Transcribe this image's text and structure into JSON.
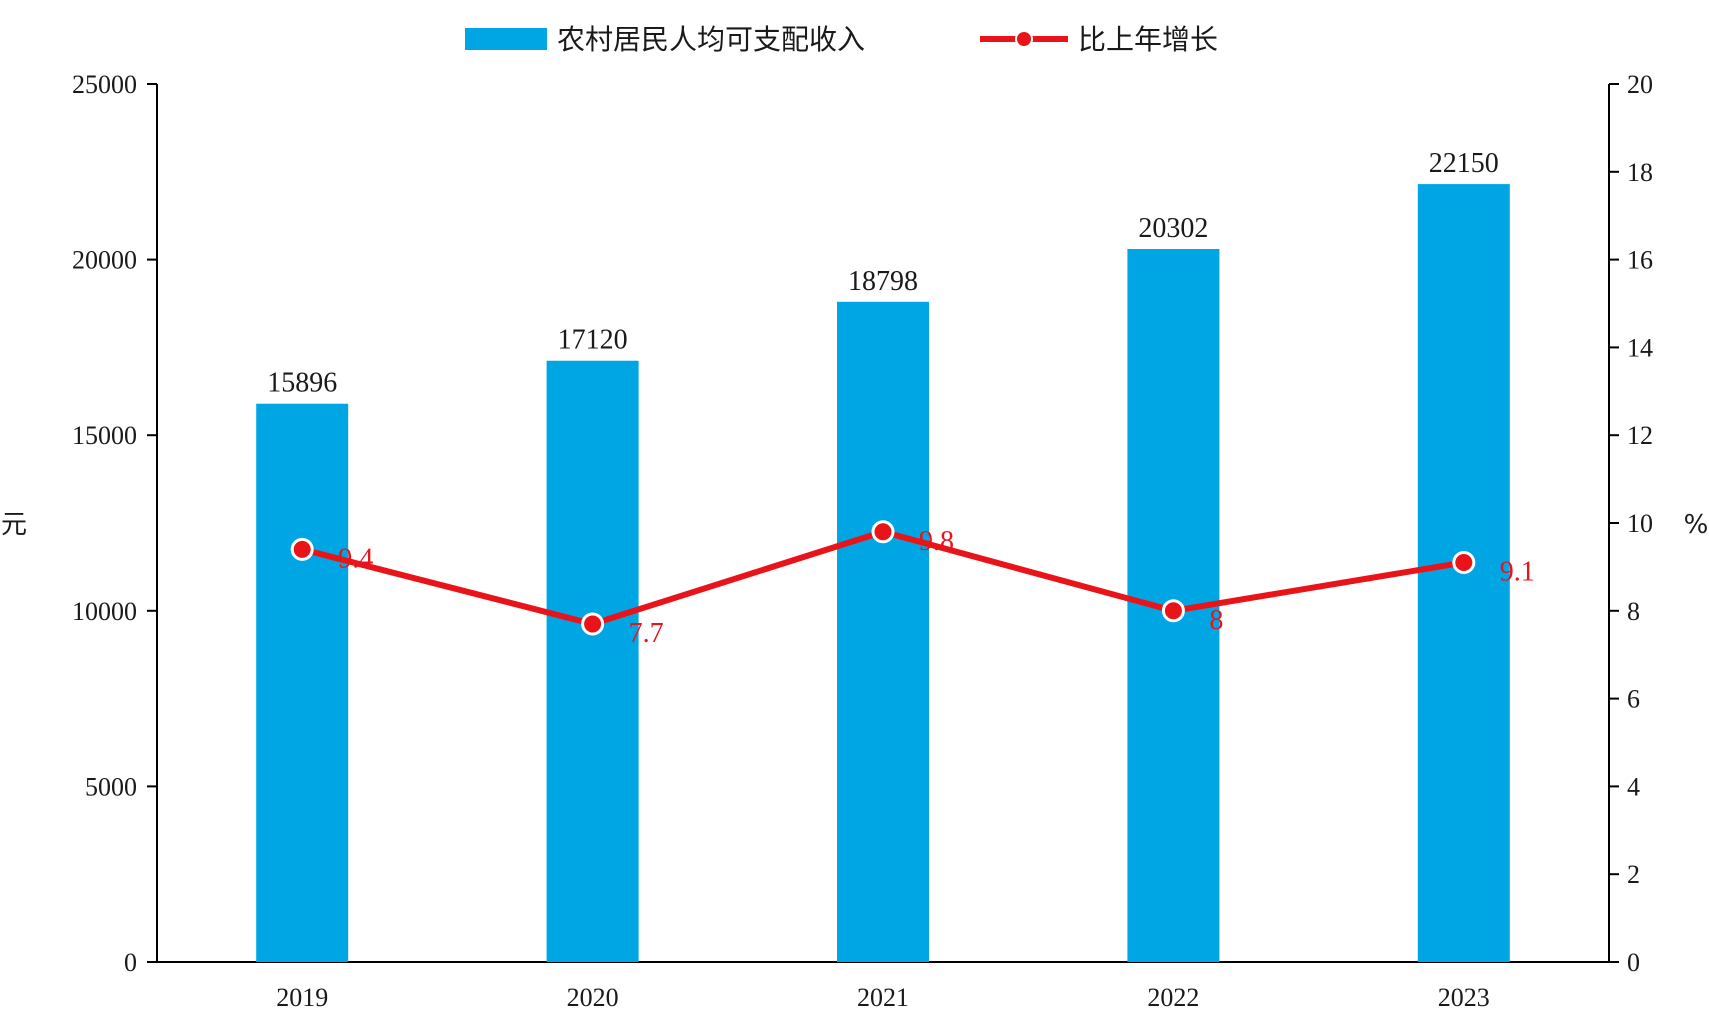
{
  "chart_data": {
    "type": "bar",
    "categories": [
      "2019",
      "2020",
      "2021",
      "2022",
      "2023"
    ],
    "series": [
      {
        "name": "农村居民人均可支配收入",
        "type": "bar",
        "axis": "left",
        "values": [
          15896,
          17120,
          18798,
          20302,
          22150
        ],
        "labels": [
          "15896",
          "17120",
          "18798",
          "20302",
          "22150"
        ],
        "color": "#00a6e4"
      },
      {
        "name": "比上年增长",
        "type": "line",
        "axis": "right",
        "values": [
          9.4,
          7.7,
          9.8,
          8,
          9.1
        ],
        "labels": [
          "9.4",
          "7.7",
          "9.8",
          "8",
          "9.1"
        ],
        "color": "#e8141a"
      }
    ],
    "ylabel_left": "元",
    "ylabel_right": "%",
    "ylim_left": [
      0,
      25000
    ],
    "yticks_left": [
      "0",
      "5000",
      "10000",
      "15000",
      "20000",
      "25000"
    ],
    "ylim_right": [
      0,
      20
    ],
    "yticks_right": [
      "0",
      "2",
      "4",
      "6",
      "8",
      "10",
      "12",
      "14",
      "16",
      "18",
      "20"
    ],
    "grid": false,
    "legend_position": "top-center"
  }
}
